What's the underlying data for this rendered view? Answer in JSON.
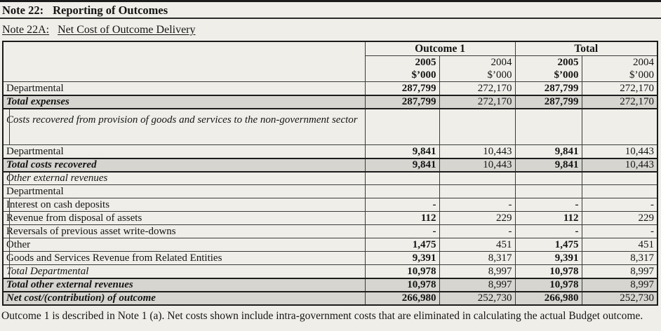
{
  "page": {
    "title_note": "Note 22:",
    "title_text": "Reporting of Outcomes",
    "subtitle_note": "Note 22A:",
    "subtitle_text": "Net Cost of Outcome Delivery",
    "footnote": "Outcome 1 is described in Note 1 (a). Net costs shown include intra-government costs that are eliminated in calculating the actual Budget outcome."
  },
  "table": {
    "column_groups": [
      {
        "label": "Outcome 1"
      },
      {
        "label": "Total"
      }
    ],
    "sub_headers": [
      {
        "year": "2005",
        "unit": "$’000",
        "bold": true
      },
      {
        "year": "2004",
        "unit": "$’000",
        "bold": false
      },
      {
        "year": "2005",
        "unit": "$’000",
        "bold": true
      },
      {
        "year": "2004",
        "unit": "$’000",
        "bold": false
      }
    ],
    "rows": [
      {
        "label": "Departmental",
        "style": "plain",
        "shaded": false,
        "tall": false,
        "values": [
          "287,799",
          "272,170",
          "287,799",
          "272,170"
        ]
      },
      {
        "label": "Total expenses",
        "style": "total",
        "shaded": true,
        "tall": false,
        "values": [
          "287,799",
          "272,170",
          "287,799",
          "272,170"
        ]
      },
      {
        "label": "Costs recovered from provision of goods and services to the non-government sector",
        "style": "section",
        "shaded": false,
        "tall": true,
        "values": [
          "",
          "",
          "",
          ""
        ]
      },
      {
        "label": "Departmental",
        "style": "plain",
        "shaded": false,
        "tall": false,
        "values": [
          "9,841",
          "10,443",
          "9,841",
          "10,443"
        ]
      },
      {
        "label": "Total costs recovered",
        "style": "total",
        "shaded": true,
        "tall": false,
        "values": [
          "9,841",
          "10,443",
          "9,841",
          "10,443"
        ]
      },
      {
        "label": "Other external revenues",
        "style": "section",
        "shaded": false,
        "tall": false,
        "values": [
          "",
          "",
          "",
          ""
        ]
      },
      {
        "label": "Departmental",
        "style": "plain",
        "shaded": false,
        "tall": false,
        "values": [
          "",
          "",
          "",
          ""
        ]
      },
      {
        "label": "Interest on cash deposits",
        "style": "indent",
        "shaded": false,
        "tall": false,
        "values": [
          "-",
          "-",
          "-",
          "-"
        ]
      },
      {
        "label": "Revenue from disposal of assets",
        "style": "indent",
        "shaded": false,
        "tall": false,
        "values": [
          "112",
          "229",
          "112",
          "229"
        ]
      },
      {
        "label": "Reversals of previous asset write-downs",
        "style": "indent",
        "shaded": false,
        "tall": false,
        "values": [
          "-",
          "-",
          "-",
          "-"
        ]
      },
      {
        "label": "Other",
        "style": "indent",
        "shaded": false,
        "tall": false,
        "values": [
          "1,475",
          "451",
          "1,475",
          "451"
        ]
      },
      {
        "label": "Goods and Services Revenue from Related Entities",
        "style": "indent",
        "shaded": false,
        "tall": false,
        "values": [
          "9,391",
          "8,317",
          "9,391",
          "8,317"
        ]
      },
      {
        "label": "Total Departmental",
        "style": "subtotal",
        "shaded": false,
        "tall": false,
        "values": [
          "10,978",
          "8,997",
          "10,978",
          "8,997"
        ]
      },
      {
        "label": "Total other external revenues",
        "style": "total",
        "shaded": true,
        "tall": false,
        "values": [
          "10,978",
          "8,997",
          "10,978",
          "8,997"
        ]
      },
      {
        "label": "Net cost/(contribution) of outcome",
        "style": "total",
        "shaded": true,
        "tall": false,
        "values": [
          "266,980",
          "252,730",
          "266,980",
          "252,730"
        ]
      }
    ]
  }
}
